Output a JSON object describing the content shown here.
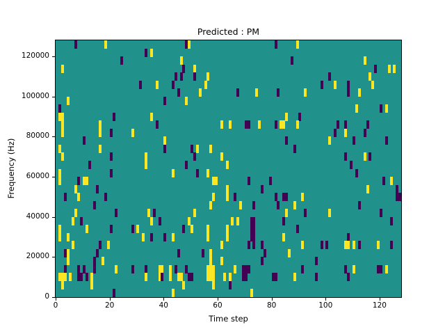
{
  "chart_data": {
    "type": "heatmap",
    "title": "Predicted : PM",
    "xlabel": "Time step",
    "ylabel": "Frequency (Hz)",
    "xlim": [
      0,
      128
    ],
    "ylim": [
      0,
      128000
    ],
    "grid_cols": 128,
    "grid_rows": 32,
    "row_height_hz": 4000,
    "x_ticks": [
      0,
      20,
      40,
      60,
      80,
      100,
      120
    ],
    "y_ticks": [
      0,
      20000,
      40000,
      60000,
      80000,
      100000,
      120000
    ],
    "legend": "none",
    "grid": "off",
    "colors": {
      "background_teal": "#21918c",
      "yellow": "#fde725",
      "purple": "#440154",
      "axis": "#000000",
      "figure_background": "#ffffff"
    },
    "cells": [
      [
        7,
        31,
        "p"
      ],
      [
        18,
        31,
        "y"
      ],
      [
        48,
        31,
        "p"
      ],
      [
        49,
        31,
        "y"
      ],
      [
        81,
        31,
        "p"
      ],
      [
        89,
        31,
        "y"
      ],
      [
        33,
        30,
        "p"
      ],
      [
        35,
        30,
        "y"
      ],
      [
        24,
        29,
        "p"
      ],
      [
        46,
        29,
        "y"
      ],
      [
        87,
        29,
        "p"
      ],
      [
        114,
        29,
        "y"
      ],
      [
        2,
        28,
        "y"
      ],
      [
        47,
        28,
        "p"
      ],
      [
        51,
        28,
        "y"
      ],
      [
        118,
        28,
        "p"
      ],
      [
        123,
        28,
        "y"
      ],
      [
        125,
        28,
        "y"
      ],
      [
        44,
        27,
        "p"
      ],
      [
        46,
        27,
        "p"
      ],
      [
        51,
        27,
        "p"
      ],
      [
        56,
        27,
        "y"
      ],
      [
        101,
        27,
        "p"
      ],
      [
        116,
        27,
        "y"
      ],
      [
        31,
        26,
        "p"
      ],
      [
        37,
        26,
        "y"
      ],
      [
        43,
        26,
        "p"
      ],
      [
        55,
        26,
        "y"
      ],
      [
        98,
        26,
        "p"
      ],
      [
        103,
        26,
        "y"
      ],
      [
        108,
        26,
        "p"
      ],
      [
        117,
        26,
        "y"
      ],
      [
        45,
        25,
        "p"
      ],
      [
        53,
        25,
        "y"
      ],
      [
        67,
        25,
        "p"
      ],
      [
        74,
        25,
        "y"
      ],
      [
        82,
        25,
        "p"
      ],
      [
        92,
        25,
        "y"
      ],
      [
        108,
        25,
        "p"
      ],
      [
        112,
        25,
        "y"
      ],
      [
        4,
        24,
        "y"
      ],
      [
        40,
        24,
        "p"
      ],
      [
        48,
        24,
        "y"
      ],
      [
        1,
        23,
        "p"
      ],
      [
        111,
        23,
        "y"
      ],
      [
        120,
        23,
        "p"
      ],
      [
        122,
        23,
        "y"
      ],
      [
        1,
        22,
        "y"
      ],
      [
        2,
        22,
        "y"
      ],
      [
        21,
        22,
        "p"
      ],
      [
        35,
        22,
        "y"
      ],
      [
        85,
        22,
        "y"
      ],
      [
        90,
        22,
        "p"
      ],
      [
        2,
        21,
        "y"
      ],
      [
        16,
        21,
        "y"
      ],
      [
        37,
        21,
        "p"
      ],
      [
        61,
        21,
        "y"
      ],
      [
        64,
        21,
        "y"
      ],
      [
        70,
        21,
        "p"
      ],
      [
        71,
        21,
        "p"
      ],
      [
        75,
        21,
        "y"
      ],
      [
        81,
        21,
        "p"
      ],
      [
        83,
        21,
        "y"
      ],
      [
        84,
        21,
        "y"
      ],
      [
        89,
        21,
        "y"
      ],
      [
        104,
        21,
        "p"
      ],
      [
        107,
        21,
        "p"
      ],
      [
        115,
        21,
        "p"
      ],
      [
        2,
        20,
        "y"
      ],
      [
        16,
        20,
        "y"
      ],
      [
        20,
        20,
        "p"
      ],
      [
        28,
        20,
        "y"
      ],
      [
        103,
        20,
        "p"
      ],
      [
        107,
        20,
        "y"
      ],
      [
        114,
        20,
        "p"
      ],
      [
        10,
        19,
        "p"
      ],
      [
        40,
        19,
        "y"
      ],
      [
        85,
        19,
        "p"
      ],
      [
        101,
        19,
        "y"
      ],
      [
        110,
        19,
        "p"
      ],
      [
        122,
        19,
        "p"
      ],
      [
        1,
        18,
        "y"
      ],
      [
        16,
        18,
        "y"
      ],
      [
        40,
        18,
        "p"
      ],
      [
        50,
        18,
        "p"
      ],
      [
        52,
        18,
        "y"
      ],
      [
        57,
        18,
        "y"
      ],
      [
        88,
        18,
        "p"
      ],
      [
        2,
        17,
        "y"
      ],
      [
        20,
        17,
        "p"
      ],
      [
        33,
        17,
        "y"
      ],
      [
        51,
        17,
        "p"
      ],
      [
        61,
        17,
        "y"
      ],
      [
        107,
        17,
        "p"
      ],
      [
        114,
        17,
        "y"
      ],
      [
        116,
        17,
        "p"
      ],
      [
        12,
        16,
        "p"
      ],
      [
        33,
        16,
        "y"
      ],
      [
        48,
        16,
        "p"
      ],
      [
        63,
        16,
        "y"
      ],
      [
        109,
        16,
        "p"
      ],
      [
        1,
        15,
        "y"
      ],
      [
        20,
        15,
        "p"
      ],
      [
        43,
        15,
        "y"
      ],
      [
        52,
        15,
        "p"
      ],
      [
        56,
        15,
        "y"
      ],
      [
        111,
        15,
        "p"
      ],
      [
        1,
        14,
        "y"
      ],
      [
        8,
        14,
        "p"
      ],
      [
        10,
        14,
        "y"
      ],
      [
        11,
        14,
        "y"
      ],
      [
        58,
        14,
        "y"
      ],
      [
        59,
        14,
        "y"
      ],
      [
        71,
        14,
        "p"
      ],
      [
        79,
        14,
        "p"
      ],
      [
        121,
        14,
        "p"
      ],
      [
        124,
        14,
        "y"
      ],
      [
        7,
        13,
        "y"
      ],
      [
        15,
        13,
        "p"
      ],
      [
        63,
        13,
        "y"
      ],
      [
        76,
        13,
        "p"
      ],
      [
        115,
        13,
        "y"
      ],
      [
        126,
        13,
        "p"
      ],
      [
        3,
        12,
        "p"
      ],
      [
        8,
        12,
        "y"
      ],
      [
        18,
        12,
        "p"
      ],
      [
        58,
        12,
        "y"
      ],
      [
        63,
        12,
        "y"
      ],
      [
        66,
        12,
        "p"
      ],
      [
        81,
        12,
        "p"
      ],
      [
        84,
        12,
        "p"
      ],
      [
        85,
        12,
        "p"
      ],
      [
        91,
        12,
        "y"
      ],
      [
        126,
        12,
        "p"
      ],
      [
        127,
        12,
        "p"
      ],
      [
        14,
        11,
        "p"
      ],
      [
        57,
        11,
        "y"
      ],
      [
        68,
        11,
        "y"
      ],
      [
        73,
        11,
        "p"
      ],
      [
        82,
        11,
        "p"
      ],
      [
        88,
        11,
        "y"
      ],
      [
        112,
        11,
        "p"
      ],
      [
        7,
        10,
        "y"
      ],
      [
        22,
        10,
        "p"
      ],
      [
        34,
        10,
        "y"
      ],
      [
        36,
        10,
        "p"
      ],
      [
        51,
        10,
        "y"
      ],
      [
        85,
        10,
        "y"
      ],
      [
        92,
        10,
        "p"
      ],
      [
        101,
        10,
        "y"
      ],
      [
        120,
        10,
        "p"
      ],
      [
        6,
        9,
        "y"
      ],
      [
        9,
        9,
        "p"
      ],
      [
        35,
        9,
        "y"
      ],
      [
        38,
        9,
        "p"
      ],
      [
        49,
        9,
        "y"
      ],
      [
        65,
        9,
        "y"
      ],
      [
        67,
        9,
        "y"
      ],
      [
        72,
        9,
        "p"
      ],
      [
        73,
        9,
        "p"
      ],
      [
        84,
        9,
        "p"
      ],
      [
        124,
        9,
        "p"
      ],
      [
        1,
        8,
        "y"
      ],
      [
        11,
        8,
        "y"
      ],
      [
        20,
        8,
        "p"
      ],
      [
        28,
        8,
        "p"
      ],
      [
        30,
        8,
        "y"
      ],
      [
        47,
        8,
        "p"
      ],
      [
        50,
        8,
        "y"
      ],
      [
        56,
        8,
        "y"
      ],
      [
        63,
        8,
        "y"
      ],
      [
        72,
        8,
        "p"
      ],
      [
        73,
        8,
        "p"
      ],
      [
        89,
        8,
        "p"
      ],
      [
        1,
        7,
        "y"
      ],
      [
        4,
        7,
        "y"
      ],
      [
        32,
        7,
        "y"
      ],
      [
        35,
        7,
        "p"
      ],
      [
        40,
        7,
        "p"
      ],
      [
        43,
        7,
        "y"
      ],
      [
        56,
        7,
        "y"
      ],
      [
        63,
        7,
        "y"
      ],
      [
        72,
        7,
        "p"
      ],
      [
        73,
        7,
        "p"
      ],
      [
        84,
        7,
        "y"
      ],
      [
        108,
        7,
        "p"
      ],
      [
        6,
        6,
        "y"
      ],
      [
        16,
        6,
        "p"
      ],
      [
        19,
        6,
        "y"
      ],
      [
        61,
        6,
        "y"
      ],
      [
        71,
        6,
        "p"
      ],
      [
        73,
        6,
        "p"
      ],
      [
        76,
        6,
        "p"
      ],
      [
        91,
        6,
        "y"
      ],
      [
        98,
        6,
        "p"
      ],
      [
        100,
        6,
        "p"
      ],
      [
        107,
        6,
        "y"
      ],
      [
        108,
        6,
        "y"
      ],
      [
        110,
        6,
        "y"
      ],
      [
        112,
        6,
        "p"
      ],
      [
        119,
        6,
        "y"
      ],
      [
        124,
        6,
        "p"
      ],
      [
        3,
        5,
        "p"
      ],
      [
        4,
        5,
        "y"
      ],
      [
        15,
        5,
        "p"
      ],
      [
        45,
        5,
        "p"
      ],
      [
        54,
        5,
        "p"
      ],
      [
        57,
        5,
        "y"
      ],
      [
        77,
        5,
        "p"
      ],
      [
        86,
        5,
        "y"
      ],
      [
        4,
        4,
        "y"
      ],
      [
        14,
        4,
        "p"
      ],
      [
        17,
        4,
        "y"
      ],
      [
        57,
        4,
        "y"
      ],
      [
        61,
        4,
        "y"
      ],
      [
        76,
        4,
        "p"
      ],
      [
        96,
        4,
        "p"
      ],
      [
        3,
        3,
        "p"
      ],
      [
        8,
        3,
        "p"
      ],
      [
        10,
        3,
        "p"
      ],
      [
        14,
        3,
        "p"
      ],
      [
        22,
        3,
        "y"
      ],
      [
        28,
        3,
        "p"
      ],
      [
        33,
        3,
        "p"
      ],
      [
        38,
        3,
        "y"
      ],
      [
        39,
        3,
        "y"
      ],
      [
        42,
        3,
        "y"
      ],
      [
        44,
        3,
        "p"
      ],
      [
        48,
        3,
        "p"
      ],
      [
        56,
        3,
        "y"
      ],
      [
        57,
        3,
        "y"
      ],
      [
        58,
        3,
        "y"
      ],
      [
        66,
        3,
        "y"
      ],
      [
        69,
        3,
        "p"
      ],
      [
        70,
        3,
        "p"
      ],
      [
        71,
        3,
        "p"
      ],
      [
        91,
        3,
        "p"
      ],
      [
        107,
        3,
        "p"
      ],
      [
        110,
        3,
        "y"
      ],
      [
        119,
        3,
        "p"
      ],
      [
        120,
        3,
        "p"
      ],
      [
        122,
        3,
        "y"
      ],
      [
        1,
        2,
        "y"
      ],
      [
        2,
        2,
        "y"
      ],
      [
        3,
        2,
        "y"
      ],
      [
        5,
        2,
        "y"
      ],
      [
        8,
        2,
        "p"
      ],
      [
        9,
        2,
        "p"
      ],
      [
        11,
        2,
        "p"
      ],
      [
        13,
        2,
        "y"
      ],
      [
        33,
        2,
        "y"
      ],
      [
        38,
        2,
        "y"
      ],
      [
        39,
        2,
        "p"
      ],
      [
        42,
        2,
        "y"
      ],
      [
        45,
        2,
        "y"
      ],
      [
        46,
        2,
        "y"
      ],
      [
        49,
        2,
        "p"
      ],
      [
        50,
        2,
        "p"
      ],
      [
        56,
        2,
        "y"
      ],
      [
        57,
        2,
        "y"
      ],
      [
        58,
        2,
        "y"
      ],
      [
        62,
        2,
        "y"
      ],
      [
        64,
        2,
        "y"
      ],
      [
        69,
        2,
        "p"
      ],
      [
        70,
        2,
        "p"
      ],
      [
        80,
        2,
        "p"
      ],
      [
        81,
        2,
        "p"
      ],
      [
        88,
        2,
        "y"
      ],
      [
        96,
        2,
        "p"
      ],
      [
        108,
        2,
        "p"
      ],
      [
        2,
        1,
        "y"
      ],
      [
        13,
        1,
        "y"
      ],
      [
        47,
        1,
        "y"
      ],
      [
        58,
        1,
        "y"
      ],
      [
        64,
        1,
        "p"
      ],
      [
        21,
        0,
        "p"
      ],
      [
        43,
        0,
        "y"
      ],
      [
        72,
        0,
        "y"
      ]
    ]
  }
}
